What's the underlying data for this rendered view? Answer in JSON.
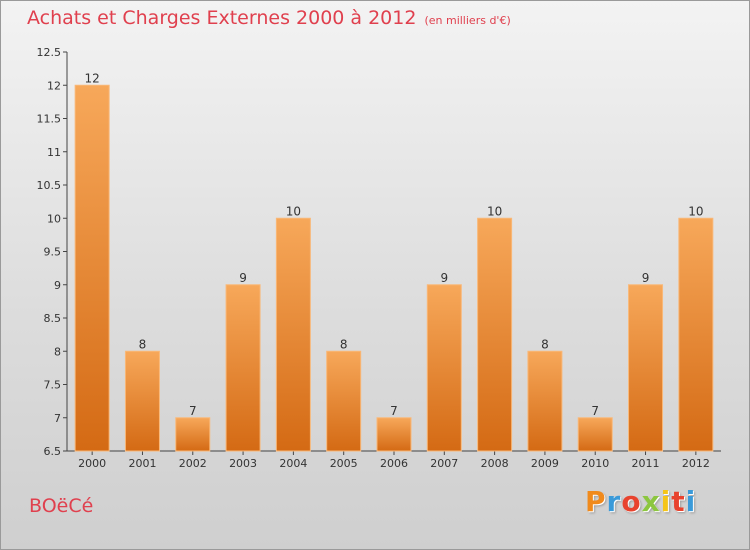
{
  "header": {
    "title": "Achats et Charges Externes 2000 à 2012",
    "subtitle": "(en milliers d'€)"
  },
  "commune": {
    "name": "BOëCé"
  },
  "logo": {
    "letters": [
      "P",
      "r",
      "o",
      "x",
      "i",
      "t",
      "i"
    ],
    "colors": [
      "#f08a1c",
      "#3a9ad9",
      "#e8432e",
      "#8cc63f",
      "#f5c518",
      "#e8432e",
      "#3a9ad9"
    ]
  },
  "colors": {
    "bar_top": "#f7a85a",
    "bar_bottom": "#d46a14",
    "title": "#e0404e"
  },
  "chart_data": {
    "type": "bar",
    "title": "Achats et Charges Externes 2000 à 2012",
    "subtitle": "(en milliers d'€)",
    "xlabel": "",
    "ylabel": "",
    "categories": [
      "2000",
      "2001",
      "2002",
      "2003",
      "2004",
      "2005",
      "2006",
      "2007",
      "2008",
      "2009",
      "2010",
      "2011",
      "2012"
    ],
    "values": [
      12,
      8,
      7,
      9,
      10,
      8,
      7,
      9,
      10,
      8,
      7,
      9,
      10
    ],
    "ylim": [
      6.5,
      12.5
    ],
    "yticks": [
      "6.5",
      "7",
      "7.5",
      "8",
      "8.5",
      "9",
      "9.5",
      "10",
      "10.5",
      "11",
      "11.5",
      "12",
      "12.5"
    ],
    "grid": false,
    "legend": "none"
  }
}
